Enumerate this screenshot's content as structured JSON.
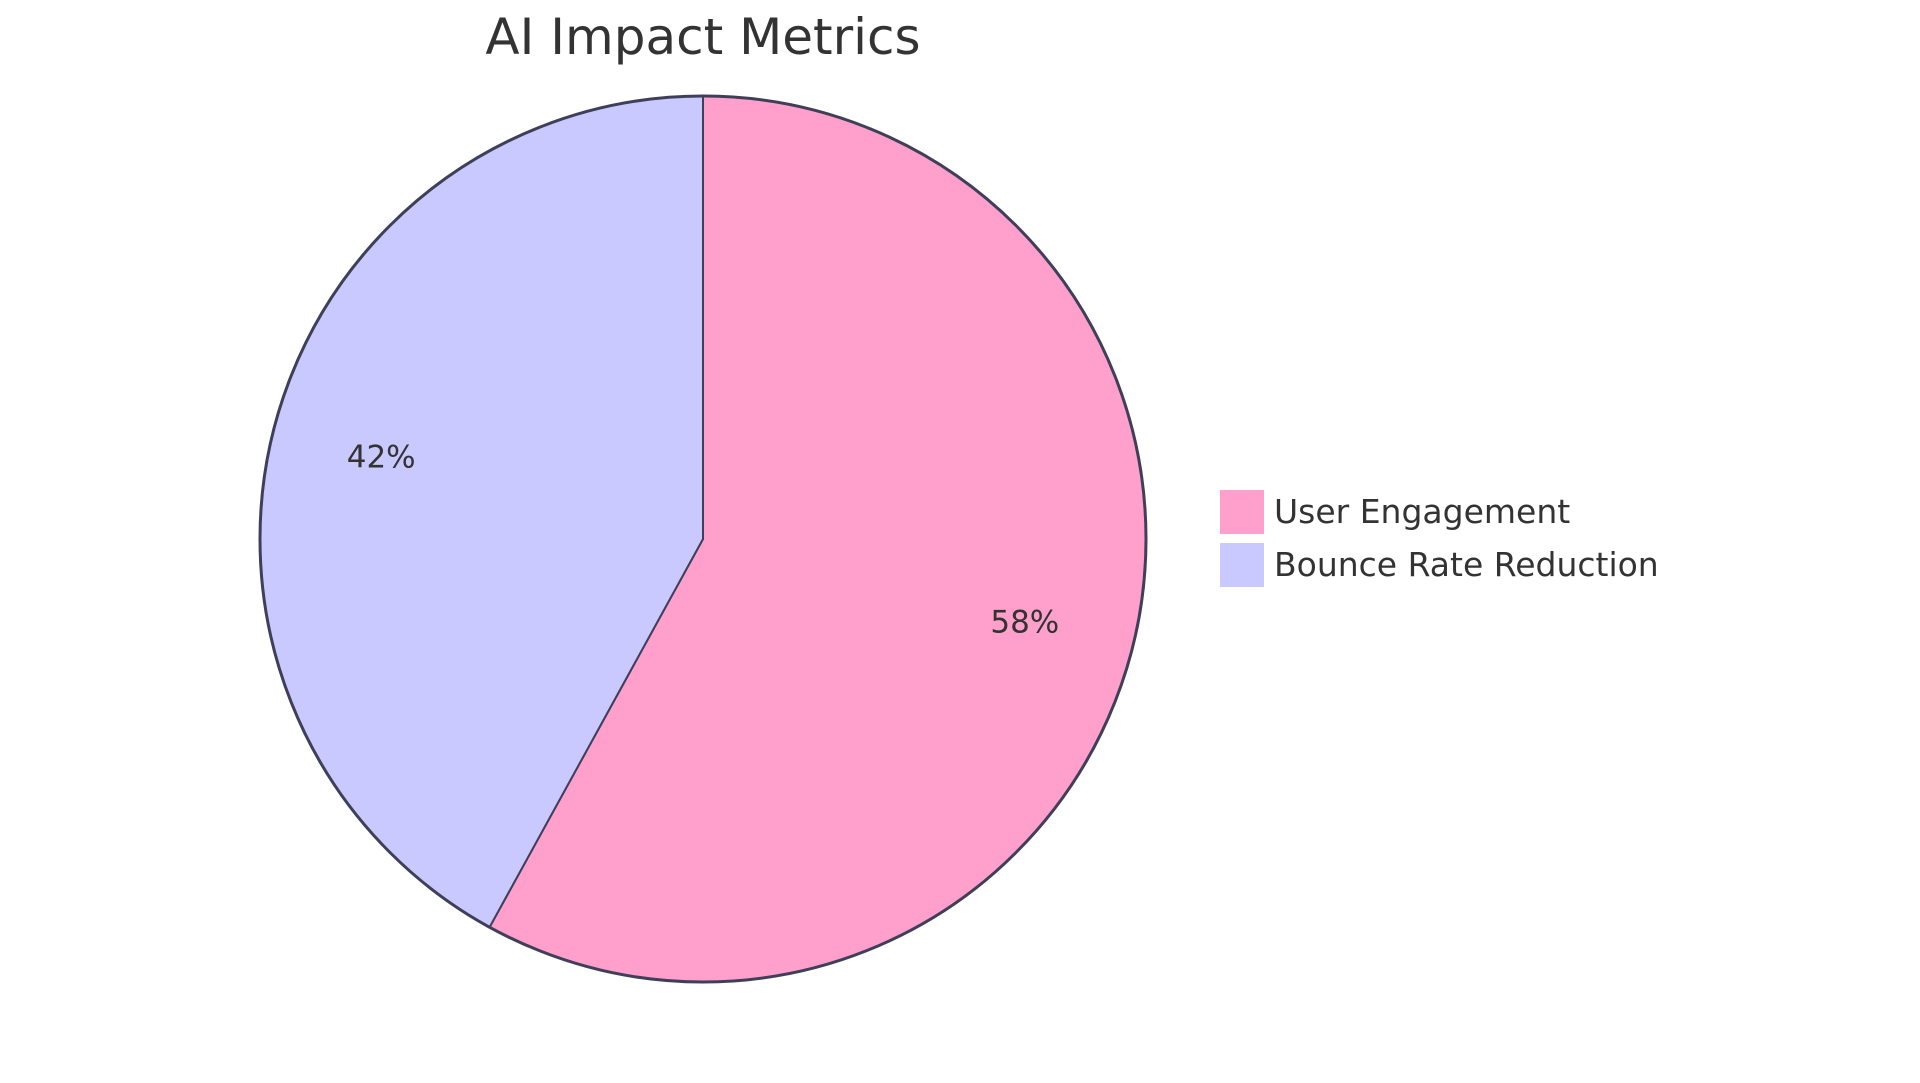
{
  "chart_data": {
    "type": "pie",
    "title": "AI Impact Metrics",
    "categories": [
      "User Engagement",
      "Bounce Rate Reduction"
    ],
    "values": [
      58,
      42
    ],
    "labels": [
      "58%",
      "42%"
    ],
    "colors": [
      "#FFA0CC",
      "#C9C9FF"
    ],
    "stroke_color": "#3F3F5A",
    "legend_position": "right"
  },
  "title": "AI Impact Metrics",
  "legend": {
    "items": [
      {
        "label": "User Engagement",
        "color": "#FFA0CC"
      },
      {
        "label": "Bounce Rate Reduction",
        "color": "#C9C9FF"
      }
    ]
  },
  "slice_labels": {
    "user_engagement": "58%",
    "bounce_rate_reduction": "42%"
  }
}
